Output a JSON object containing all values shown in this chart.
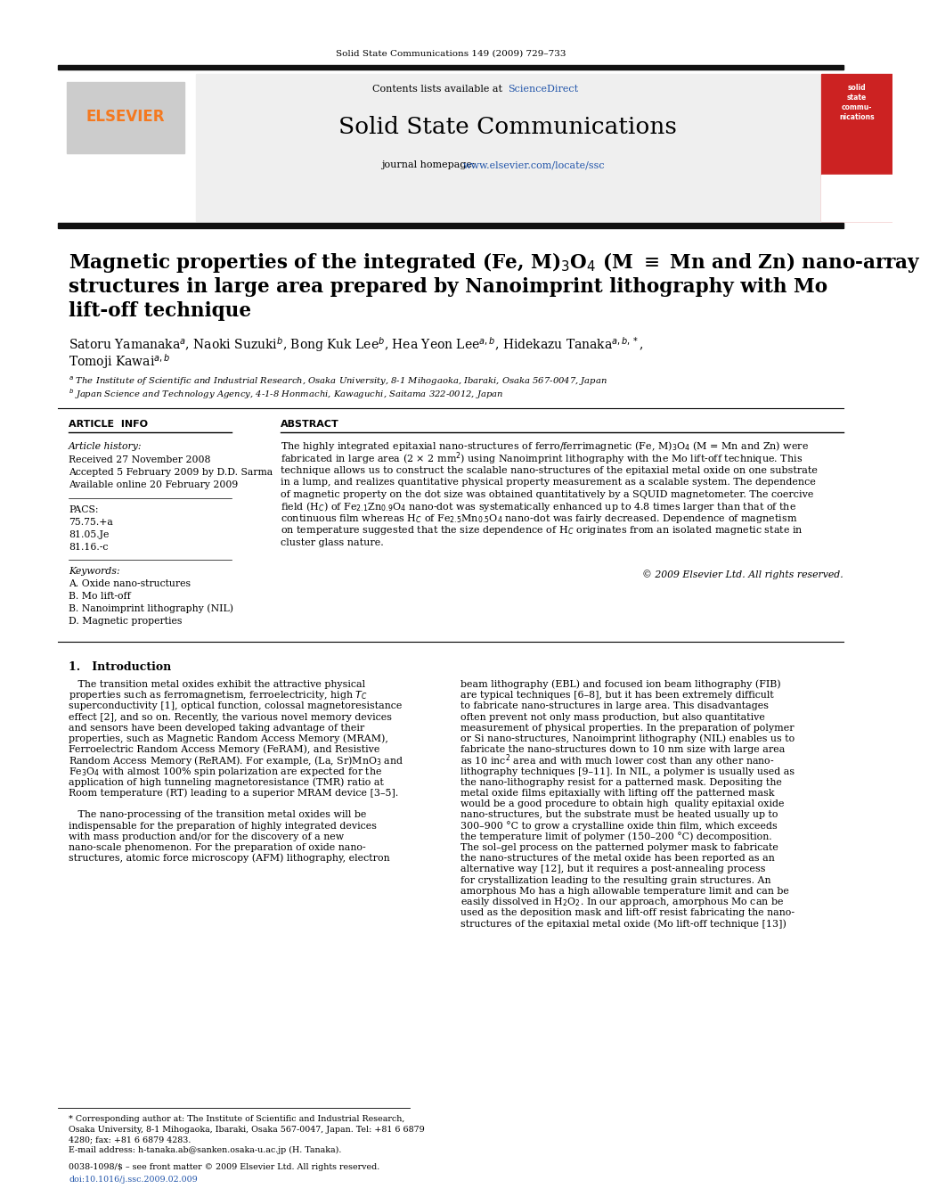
{
  "page_title": "Solid State Communications 149 (2009) 729–733",
  "journal_name": "Solid State Communications",
  "homepage_url": "www.elsevier.com/locate/ssc",
  "paper_title_line1": "Magnetic properties of the integrated (Fe, M)$_3$O$_4$ (M $\\equiv$ Mn and Zn) nano-array",
  "paper_title_line2": "structures in large area prepared by Nanoimprint lithography with Mo",
  "paper_title_line3": "lift-off technique",
  "authors_line1": "Satoru Yamanaka$^a$, Naoki Suzuki$^b$, Bong Kuk Lee$^b$, Hea Yeon Lee$^{a,b}$, Hidekazu Tanaka$^{a,b,*}$,",
  "authors_line2": "Tomoji Kawai$^{a,b}$",
  "affil_a": "$^a$ The Institute of Scientific and Industrial Research, Osaka University, 8-1 Mihogaoka, Ibaraki, Osaka 567-0047, Japan",
  "affil_b": "$^b$ Japan Science and Technology Agency, 4-1-8 Honmachi, Kawaguchi, Saitama 322-0012, Japan",
  "section_article_info": "ARTICLE  INFO",
  "section_abstract": "ABSTRACT",
  "article_history_label": "Article history:",
  "received": "Received 27 November 2008",
  "accepted": "Accepted 5 February 2009 by D.D. Sarma",
  "available": "Available online 20 February 2009",
  "pacs_label": "PACS:",
  "pacs1": "75.75.+a",
  "pacs2": "81.05.Je",
  "pacs3": "81.16.-c",
  "keywords_label": "Keywords:",
  "keyword1": "A. Oxide nano-structures",
  "keyword2": "B. Mo lift-off",
  "keyword3": "B. Nanoimprint lithography (NIL)",
  "keyword4": "D. Magnetic properties",
  "abstract_lines": [
    "The highly integrated epitaxial nano-structures of ferro/ferrimagnetic (Fe, M)$_3$O$_4$ (M = Mn and Zn) were",
    "fabricated in large area (2 × 2 mm$^2$) using Nanoimprint lithography with the Mo lift-off technique. This",
    "technique allows us to construct the scalable nano-structures of the epitaxial metal oxide on one substrate",
    "in a lump, and realizes quantitative physical property measurement as a scalable system. The dependence",
    "of magnetic property on the dot size was obtained quantitatively by a SQUID magnetometer. The coercive",
    "field (H$_C$) of Fe$_{2.1}$Zn$_{0.9}$O$_4$ nano-dot was systematically enhanced up to 4.8 times larger than that of the",
    "continuous film whereas H$_C$ of Fe$_{2.5}$Mn$_{0.5}$O$_4$ nano-dot was fairly decreased. Dependence of magnetism",
    "on temperature suggested that the size dependence of H$_C$ originates from an isolated magnetic state in",
    "cluster glass nature."
  ],
  "copyright": "© 2009 Elsevier Ltd. All rights reserved.",
  "intro_heading": "1.   Introduction",
  "intro_left_lines": [
    "   The transition metal oxides exhibit the attractive physical",
    "properties such as ferromagnetism, ferroelectricity, high $T_C$",
    "superconductivity [1], optical function, colossal magnetoresistance",
    "effect [2], and so on. Recently, the various novel memory devices",
    "and sensors have been developed taking advantage of their",
    "properties, such as Magnetic Random Access Memory (MRAM),",
    "Ferroelectric Random Access Memory (FeRAM), and Resistive",
    "Random Access Memory (ReRAM). For example, (La, Sr)MnO$_3$ and",
    "Fe$_3$O$_4$ with almost 100% spin polarization are expected for the",
    "application of high tunneling magnetoresistance (TMR) ratio at",
    "Room temperature (RT) leading to a superior MRAM device [3–5].",
    "",
    "   The nano-processing of the transition metal oxides will be",
    "indispensable for the preparation of highly integrated devices",
    "with mass production and/or for the discovery of a new",
    "nano-scale phenomenon. For the preparation of oxide nano-",
    "structures, atomic force microscopy (AFM) lithography, electron"
  ],
  "intro_right_lines": [
    "beam lithography (EBL) and focused ion beam lithography (FIB)",
    "are typical techniques [6–8], but it has been extremely difficult",
    "to fabricate nano-structures in large area. This disadvantages",
    "often prevent not only mass production, but also quantitative",
    "measurement of physical properties. In the preparation of polymer",
    "or Si nano-structures, Nanoimprint lithography (NIL) enables us to",
    "fabricate the nano-structures down to 10 nm size with large area",
    "as 10 inc$^2$ area and with much lower cost than any other nano-",
    "lithography techniques [9–11]. In NIL, a polymer is usually used as",
    "the nano-lithography resist for a patterned mask. Depositing the",
    "metal oxide films epitaxially with lifting off the patterned mask",
    "would be a good procedure to obtain high  quality epitaxial oxide",
    "nano-structures, but the substrate must be heated usually up to",
    "300–900 °C to grow a crystalline oxide thin film, which exceeds",
    "the temperature limit of polymer (150–200 °C) decomposition.",
    "The sol–gel process on the patterned polymer mask to fabricate",
    "the nano-structures of the metal oxide has been reported as an",
    "alternative way [12], but it requires a post-annealing process",
    "for crystallization leading to the resulting grain structures. An",
    "amorphous Mo has a high allowable temperature limit and can be",
    "easily dissolved in H$_2$O$_2$. In our approach, amorphous Mo can be",
    "used as the deposition mask and lift-off resist fabricating the nano-",
    "structures of the epitaxial metal oxide (Mo lift-off technique [13])"
  ],
  "footnote_lines": [
    "* Corresponding author at: The Institute of Scientific and Industrial Research,",
    "Osaka University, 8-1 Mihogaoka, Ibaraki, Osaka 567-0047, Japan. Tel: +81 6 6879",
    "4280; fax: +81 6 6879 4283.",
    "E-mail address: h-tanaka.ab@sanken.osaka-u.ac.jp (H. Tanaka)."
  ],
  "issn_text": "0038-1098/$ – see front matter © 2009 Elsevier Ltd. All rights reserved.",
  "doi_text": "doi:10.1016/j.ssc.2009.02.009",
  "bg_color": "#ffffff",
  "black_bar_color": "#111111",
  "elsevier_color": "#f47920",
  "link_color": "#2255aa",
  "text_color": "#000000",
  "header_gray": "#efefef"
}
